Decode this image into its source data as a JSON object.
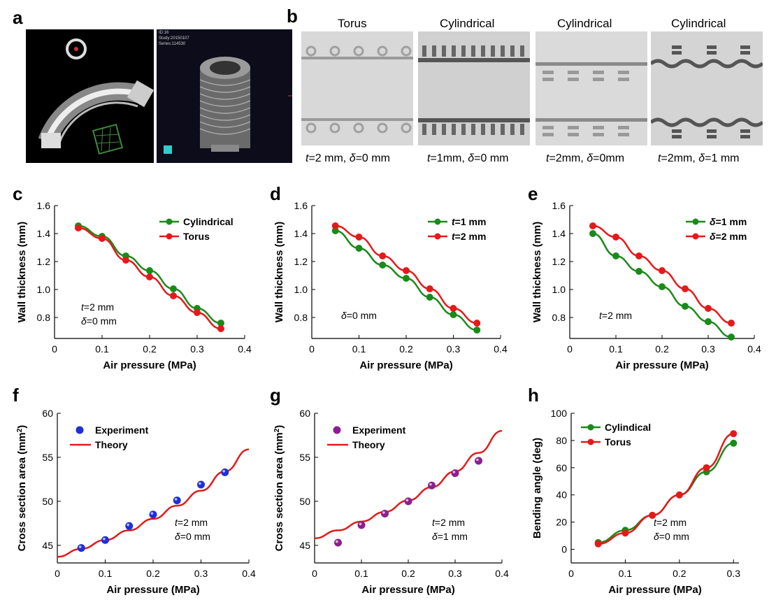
{
  "panel_letters": [
    "a",
    "b",
    "c",
    "d",
    "e",
    "f",
    "g",
    "h"
  ],
  "panel_a": {
    "ct_info": [
      "ID:16",
      "Study:20150107",
      "Series:114530"
    ]
  },
  "panel_b": {
    "labels": [
      "Torus",
      "Cylindrical",
      "Cylindrical",
      "Cylindrical"
    ],
    "captions": [
      {
        "t": "2 mm",
        "d": "0 mm"
      },
      {
        "t": "1mm",
        "d": "0 mm"
      },
      {
        "t": "2mm",
        "d": "0mm"
      },
      {
        "t": "2mm",
        "d": "1 mm"
      }
    ]
  },
  "colors": {
    "green": "#1a8a1a",
    "red": "#e41a1a",
    "blue": "#1f2fd6",
    "purple": "#8b1f8f"
  },
  "chart_data": [
    {
      "id": "c",
      "type": "line",
      "xlabel": "Air pressure (MPa)",
      "ylabel": "Wall thickness (mm)",
      "xlim": [
        0,
        0.4
      ],
      "ylim": [
        0.65,
        1.6
      ],
      "xticks": [
        "0",
        "0.1",
        "0.2",
        "0.3",
        "0.4"
      ],
      "yticks": [
        "0.8",
        "1.0",
        "1.2",
        "1.4",
        "1.6"
      ],
      "xtick_vals": [
        0,
        0.1,
        0.2,
        0.3,
        0.4
      ],
      "ytick_vals": [
        0.8,
        1.0,
        1.2,
        1.4,
        1.6
      ],
      "legend_position": "top-right",
      "annotation": [
        "t=2 mm",
        "δ=0 mm"
      ],
      "x": [
        0.05,
        0.1,
        0.15,
        0.2,
        0.25,
        0.3,
        0.35
      ],
      "series": [
        {
          "name": "Cylindrical",
          "color": "green",
          "values": [
            1.455,
            1.38,
            1.24,
            1.135,
            1.005,
            0.865,
            0.76
          ]
        },
        {
          "name": "Torus",
          "color": "red",
          "values": [
            1.44,
            1.365,
            1.21,
            1.09,
            0.955,
            0.835,
            0.72
          ]
        }
      ]
    },
    {
      "id": "d",
      "type": "line",
      "xlabel": "Air pressure (MPa)",
      "ylabel": "Wall thickness (mm)",
      "xlim": [
        0,
        0.4
      ],
      "ylim": [
        0.65,
        1.6
      ],
      "xticks": [
        "0",
        "0.1",
        "0.2",
        "0.3",
        "0.4"
      ],
      "yticks": [
        "0.8",
        "1.0",
        "1.2",
        "1.4",
        "1.6"
      ],
      "xtick_vals": [
        0,
        0.1,
        0.2,
        0.3,
        0.4
      ],
      "ytick_vals": [
        0.8,
        1.0,
        1.2,
        1.4,
        1.6
      ],
      "legend_position": "top-right",
      "annotation": [
        "δ=0 mm"
      ],
      "x": [
        0.05,
        0.1,
        0.15,
        0.2,
        0.25,
        0.3,
        0.35
      ],
      "series": [
        {
          "name": "t=1 mm",
          "color": "green",
          "values": [
            1.42,
            1.295,
            1.175,
            1.08,
            0.945,
            0.82,
            0.71
          ]
        },
        {
          "name": "t=2 mm",
          "color": "red",
          "values": [
            1.455,
            1.375,
            1.24,
            1.135,
            1.005,
            0.865,
            0.76
          ]
        }
      ]
    },
    {
      "id": "e",
      "type": "line",
      "xlabel": "Air pressure (MPa)",
      "ylabel": "Wall thickness (mm)",
      "xlim": [
        0,
        0.4
      ],
      "ylim": [
        0.65,
        1.6
      ],
      "xticks": [
        "0",
        "0.1",
        "0.2",
        "0.3",
        "0.4"
      ],
      "yticks": [
        "0.8",
        "1.0",
        "1.2",
        "1.4",
        "1.6"
      ],
      "xtick_vals": [
        0,
        0.1,
        0.2,
        0.3,
        0.4
      ],
      "ytick_vals": [
        0.8,
        1.0,
        1.2,
        1.4,
        1.6
      ],
      "legend_position": "top-right",
      "annotation": [
        "t=2 mm"
      ],
      "x": [
        0.05,
        0.1,
        0.15,
        0.2,
        0.25,
        0.3,
        0.35
      ],
      "series": [
        {
          "name": "δ=1 mm",
          "color": "green",
          "values": [
            1.4,
            1.24,
            1.13,
            1.02,
            0.88,
            0.77,
            0.66
          ]
        },
        {
          "name": "δ=2 mm",
          "color": "red",
          "values": [
            1.455,
            1.375,
            1.24,
            1.135,
            1.005,
            0.865,
            0.76
          ]
        }
      ]
    },
    {
      "id": "f",
      "type": "scatter",
      "xlabel": "Air pressure (MPa)",
      "ylabel": "Cross section area (mm²)",
      "xlim": [
        0,
        0.4
      ],
      "ylim": [
        43,
        60
      ],
      "xticks": [
        "0",
        "0.1",
        "0.2",
        "0.3",
        "0.4"
      ],
      "yticks": [
        "45",
        "50",
        "55",
        "60"
      ],
      "xtick_vals": [
        0,
        0.1,
        0.2,
        0.3,
        0.4
      ],
      "ytick_vals": [
        45,
        50,
        55,
        60
      ],
      "legend_position": "top-left",
      "annotation": [
        "t=2 mm",
        "δ=0 mm"
      ],
      "experiment": {
        "name": "Experiment",
        "color": "blue",
        "x": [
          0.05,
          0.1,
          0.15,
          0.2,
          0.25,
          0.3,
          0.35
        ],
        "y": [
          44.7,
          45.6,
          47.2,
          48.5,
          50.1,
          51.9,
          53.3
        ]
      },
      "theory": {
        "name": "Theory",
        "color": "red",
        "x": [
          0,
          0.05,
          0.1,
          0.15,
          0.2,
          0.25,
          0.3,
          0.35,
          0.4
        ],
        "y": [
          43.7,
          44.6,
          45.6,
          46.7,
          48.0,
          49.5,
          51.2,
          53.4,
          55.9
        ]
      }
    },
    {
      "id": "g",
      "type": "scatter",
      "xlabel": "Air pressure (MPa)",
      "ylabel": "Cross section area (mm²)",
      "xlim": [
        0,
        0.4
      ],
      "ylim": [
        43,
        60
      ],
      "xticks": [
        "0",
        "0.1",
        "0.2",
        "0.3",
        "0.4"
      ],
      "yticks": [
        "45",
        "50",
        "55",
        "60"
      ],
      "xtick_vals": [
        0,
        0.1,
        0.2,
        0.3,
        0.4
      ],
      "ytick_vals": [
        45,
        50,
        55,
        60
      ],
      "legend_position": "top-left",
      "annotation": [
        "t=2 mm",
        "δ=1 mm"
      ],
      "experiment": {
        "name": "Experiment",
        "color": "purple",
        "x": [
          0.05,
          0.1,
          0.15,
          0.2,
          0.25,
          0.3,
          0.35
        ],
        "y": [
          45.3,
          47.3,
          48.6,
          50.0,
          51.8,
          53.2,
          54.6
        ]
      },
      "theory": {
        "name": "Theory",
        "color": "red",
        "x": [
          0,
          0.05,
          0.1,
          0.15,
          0.2,
          0.25,
          0.3,
          0.35,
          0.4
        ],
        "y": [
          45.8,
          46.7,
          47.7,
          48.8,
          50.1,
          51.6,
          53.4,
          55.5,
          58.0
        ]
      }
    },
    {
      "id": "h",
      "type": "line",
      "xlabel": "Air pressure (MPa)",
      "ylabel": "Bending angle (deg)",
      "xlim": [
        0,
        0.31
      ],
      "ylim": [
        -10,
        100
      ],
      "xticks": [
        "0",
        "0.1",
        "0.2",
        "0.3"
      ],
      "yticks": [
        "0",
        "20",
        "40",
        "60",
        "80",
        "100"
      ],
      "xtick_vals": [
        0,
        0.1,
        0.2,
        0.3
      ],
      "ytick_vals": [
        0,
        20,
        40,
        60,
        80,
        100
      ],
      "legend_position": "top-left",
      "annotation": [
        "t=2 mm",
        "δ=0 mm"
      ],
      "x": [
        0.05,
        0.1,
        0.15,
        0.2,
        0.25,
        0.3
      ],
      "series": [
        {
          "name": "Cylindical",
          "color": "green",
          "values": [
            5,
            14,
            25,
            40,
            57,
            78
          ]
        },
        {
          "name": "Torus",
          "color": "red",
          "values": [
            4,
            12,
            25,
            40,
            60,
            85
          ]
        }
      ]
    }
  ]
}
